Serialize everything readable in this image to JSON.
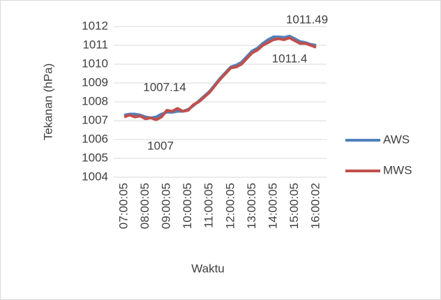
{
  "chart_data": {
    "type": "line",
    "x_label": "Waktu",
    "y_label": "Tekanan (hPa)",
    "categories": [
      "07:00:05",
      null,
      null,
      null,
      "08:00:05",
      null,
      null,
      null,
      "09:00:05",
      null,
      null,
      null,
      "10:00:05",
      null,
      null,
      null,
      "11:00:05",
      null,
      null,
      null,
      "12:00:05",
      null,
      null,
      null,
      "13:00:05",
      null,
      null,
      null,
      "14:00:05",
      null,
      null,
      null,
      "15:00:05",
      null,
      null,
      null,
      "16:00:02"
    ],
    "series": [
      {
        "name": "AWS",
        "color": "#4f81bd",
        "values": [
          1007.3,
          1007.35,
          1007.35,
          1007.3,
          1007.2,
          1007.15,
          1007.2,
          1007.35,
          1007.45,
          1007.45,
          1007.5,
          1007.5,
          1007.6,
          1007.8,
          1008.05,
          1008.3,
          1008.55,
          1008.9,
          1009.25,
          1009.55,
          1009.85,
          1009.95,
          1010.1,
          1010.4,
          1010.7,
          1010.85,
          1011.1,
          1011.3,
          1011.45,
          1011.45,
          1011.42,
          1011.49,
          1011.35,
          1011.2,
          1011.15,
          1011.05,
          1011.0
        ]
      },
      {
        "name": "MWS",
        "color": "#c0504d",
        "values": [
          1007.2,
          1007.3,
          1007.2,
          1007.25,
          1007.1,
          1007.15,
          1007.05,
          1007.2,
          1007.55,
          1007.5,
          1007.65,
          1007.5,
          1007.55,
          1007.85,
          1008.0,
          1008.25,
          1008.5,
          1008.85,
          1009.2,
          1009.5,
          1009.8,
          1009.85,
          1010.0,
          1010.3,
          1010.6,
          1010.75,
          1011.0,
          1011.15,
          1011.3,
          1011.35,
          1011.3,
          1011.4,
          1011.25,
          1011.1,
          1011.1,
          1011.0,
          1010.9
        ]
      }
    ],
    "annotations": [
      "1011.49",
      "1011.4",
      "1007.14",
      "1007"
    ],
    "ylim": [
      1004,
      1012
    ],
    "yticks": [
      1004,
      1005,
      1006,
      1007,
      1008,
      1009,
      1010,
      1011,
      1012
    ],
    "grid": true,
    "legend": "right"
  }
}
